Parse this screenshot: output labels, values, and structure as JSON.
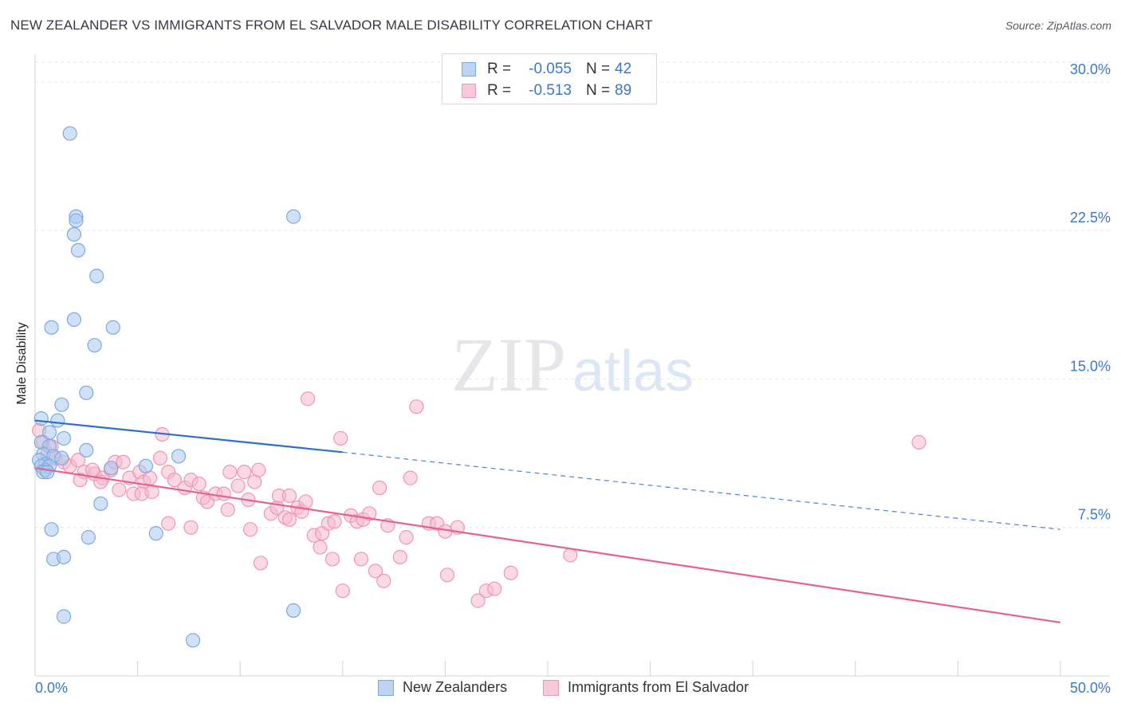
{
  "title": "NEW ZEALANDER VS IMMIGRANTS FROM EL SALVADOR MALE DISABILITY CORRELATION CHART",
  "source": "Source: ZipAtlas.com",
  "watermark": {
    "zip": "ZIP",
    "atlas": "atlas"
  },
  "colors": {
    "blue_fill": "#a9c8f0",
    "blue_stroke": "#7ea9e0",
    "blue_line": "#2a6fd1",
    "pink_fill": "#f6b9cc",
    "pink_stroke": "#ef96b3",
    "pink_line": "#e6628e",
    "tick_label": "#3a78c9",
    "grid": "#e0e3e8",
    "axis": "#cfd3d8"
  },
  "legend_top": [
    {
      "r_label": "R =",
      "r_value": "-0.055",
      "n_label": "N =",
      "n_value": "42"
    },
    {
      "r_label": "R =",
      "r_value": "-0.513",
      "n_label": "N =",
      "n_value": "89"
    }
  ],
  "legend_bottom": [
    "New Zealanders",
    "Immigrants from El Salvador"
  ],
  "chart_data": {
    "type": "scatter",
    "title": "NEW ZEALANDER VS IMMIGRANTS FROM EL SALVADOR MALE DISABILITY CORRELATION CHART",
    "xlabel": "",
    "ylabel": "Male Disability",
    "xlim": [
      0,
      50
    ],
    "ylim": [
      0,
      31
    ],
    "x_tick_labels": [
      "0.0%",
      "50.0%"
    ],
    "y_ticks": [
      7.5,
      15.0,
      22.5,
      30.0
    ],
    "y_tick_labels": [
      "7.5%",
      "15.0%",
      "22.5%",
      "30.0%"
    ],
    "grid": true,
    "series": [
      {
        "name": "New Zealanders",
        "r": -0.055,
        "n": 42,
        "trend": {
          "x": [
            0,
            15
          ],
          "y": [
            12.9,
            11.3
          ],
          "dashed_to": [
            50,
            7.4
          ]
        },
        "points": [
          [
            1.7,
            27.4
          ],
          [
            2.0,
            23.2
          ],
          [
            2.0,
            23.0
          ],
          [
            12.6,
            23.2
          ],
          [
            1.9,
            22.3
          ],
          [
            2.1,
            21.5
          ],
          [
            3.0,
            20.2
          ],
          [
            1.9,
            18.0
          ],
          [
            0.8,
            17.6
          ],
          [
            3.8,
            17.6
          ],
          [
            2.9,
            16.7
          ],
          [
            2.5,
            14.3
          ],
          [
            1.3,
            13.7
          ],
          [
            0.3,
            13.0
          ],
          [
            1.1,
            12.9
          ],
          [
            0.7,
            12.3
          ],
          [
            0.3,
            11.8
          ],
          [
            0.7,
            11.6
          ],
          [
            1.4,
            12.0
          ],
          [
            2.5,
            11.4
          ],
          [
            0.4,
            11.2
          ],
          [
            0.9,
            11.1
          ],
          [
            1.3,
            11.0
          ],
          [
            0.2,
            10.9
          ],
          [
            0.5,
            10.7
          ],
          [
            0.3,
            10.6
          ],
          [
            0.7,
            10.6
          ],
          [
            0.5,
            10.4
          ],
          [
            0.4,
            10.3
          ],
          [
            0.6,
            10.3
          ],
          [
            3.7,
            10.5
          ],
          [
            5.4,
            10.6
          ],
          [
            7.0,
            11.1
          ],
          [
            3.2,
            8.7
          ],
          [
            0.8,
            7.4
          ],
          [
            2.6,
            7.0
          ],
          [
            5.9,
            7.2
          ],
          [
            0.9,
            5.9
          ],
          [
            1.4,
            6.0
          ],
          [
            1.4,
            3.0
          ],
          [
            12.6,
            3.3
          ],
          [
            7.7,
            1.8
          ]
        ]
      },
      {
        "name": "Immigrants from El Salvador",
        "r": -0.513,
        "n": 89,
        "trend": {
          "x": [
            0,
            50
          ],
          "y": [
            10.5,
            2.7
          ]
        },
        "points": [
          [
            0.2,
            12.4
          ],
          [
            0.4,
            11.8
          ],
          [
            0.8,
            11.6
          ],
          [
            0.6,
            11.2
          ],
          [
            1.0,
            11.0
          ],
          [
            1.4,
            10.8
          ],
          [
            1.7,
            10.6
          ],
          [
            2.1,
            10.9
          ],
          [
            2.4,
            10.3
          ],
          [
            2.9,
            10.2
          ],
          [
            3.3,
            10.0
          ],
          [
            3.7,
            10.4
          ],
          [
            2.2,
            9.9
          ],
          [
            2.8,
            10.4
          ],
          [
            3.2,
            9.8
          ],
          [
            3.9,
            10.8
          ],
          [
            4.3,
            10.8
          ],
          [
            4.6,
            10.0
          ],
          [
            5.1,
            10.3
          ],
          [
            5.3,
            9.8
          ],
          [
            5.6,
            10.0
          ],
          [
            4.1,
            9.4
          ],
          [
            4.8,
            9.2
          ],
          [
            5.2,
            9.2
          ],
          [
            5.7,
            9.3
          ],
          [
            6.2,
            12.2
          ],
          [
            6.1,
            11.0
          ],
          [
            6.5,
            10.3
          ],
          [
            6.8,
            9.9
          ],
          [
            7.3,
            9.5
          ],
          [
            7.6,
            9.9
          ],
          [
            8.0,
            9.7
          ],
          [
            8.2,
            9.0
          ],
          [
            8.4,
            8.8
          ],
          [
            8.8,
            9.2
          ],
          [
            9.2,
            9.2
          ],
          [
            9.4,
            8.4
          ],
          [
            9.5,
            10.3
          ],
          [
            9.9,
            9.6
          ],
          [
            10.2,
            10.3
          ],
          [
            10.4,
            8.9
          ],
          [
            10.7,
            9.8
          ],
          [
            10.9,
            10.4
          ],
          [
            11.5,
            8.2
          ],
          [
            11.8,
            8.5
          ],
          [
            11.9,
            9.1
          ],
          [
            12.2,
            8.0
          ],
          [
            12.4,
            9.1
          ],
          [
            12.8,
            8.5
          ],
          [
            13.0,
            8.3
          ],
          [
            13.2,
            8.8
          ],
          [
            13.3,
            14.0
          ],
          [
            13.6,
            7.1
          ],
          [
            14.0,
            7.2
          ],
          [
            14.3,
            7.7
          ],
          [
            14.6,
            7.8
          ],
          [
            14.9,
            12.0
          ],
          [
            15.4,
            8.1
          ],
          [
            15.7,
            7.8
          ],
          [
            16.0,
            7.9
          ],
          [
            16.3,
            8.2
          ],
          [
            16.8,
            9.5
          ],
          [
            17.2,
            7.6
          ],
          [
            17.8,
            6.0
          ],
          [
            18.1,
            7.0
          ],
          [
            18.3,
            10.0
          ],
          [
            18.6,
            13.6
          ],
          [
            19.2,
            7.7
          ],
          [
            19.6,
            7.7
          ],
          [
            20.0,
            7.3
          ],
          [
            20.6,
            7.5
          ],
          [
            22.0,
            4.3
          ],
          [
            21.6,
            3.8
          ],
          [
            22.4,
            4.4
          ],
          [
            15.0,
            4.3
          ],
          [
            17.0,
            4.8
          ],
          [
            15.9,
            5.9
          ],
          [
            16.6,
            5.3
          ],
          [
            14.5,
            5.9
          ],
          [
            13.9,
            6.5
          ],
          [
            11.0,
            5.7
          ],
          [
            7.6,
            7.5
          ],
          [
            6.5,
            7.7
          ],
          [
            10.5,
            7.4
          ],
          [
            20.1,
            5.1
          ],
          [
            23.2,
            5.2
          ],
          [
            26.1,
            6.1
          ],
          [
            43.1,
            11.8
          ],
          [
            12.4,
            7.9
          ]
        ]
      }
    ]
  }
}
